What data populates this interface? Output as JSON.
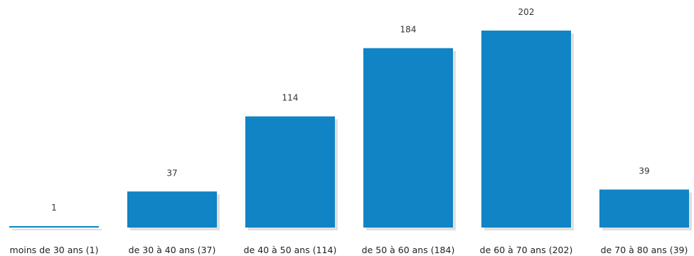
{
  "chart_data": {
    "type": "bar",
    "title": "",
    "xlabel": "",
    "ylabel": "",
    "categories": [
      "moins de 30 ans (1)",
      "de 30 à 40 ans (37)",
      "de 40 à 50 ans (114)",
      "de 50 à 60 ans (184)",
      "de 60 à 70 ans (202)",
      "de 70 à 80 ans (39)"
    ],
    "values": [
      1,
      37,
      114,
      184,
      202,
      39
    ],
    "value_labels": [
      "1",
      "37",
      "114",
      "184",
      "202",
      "39"
    ],
    "ylim": [
      0,
      202
    ],
    "grid": false,
    "colors": {
      "bar": "#1084c4",
      "text": "#222222"
    }
  }
}
